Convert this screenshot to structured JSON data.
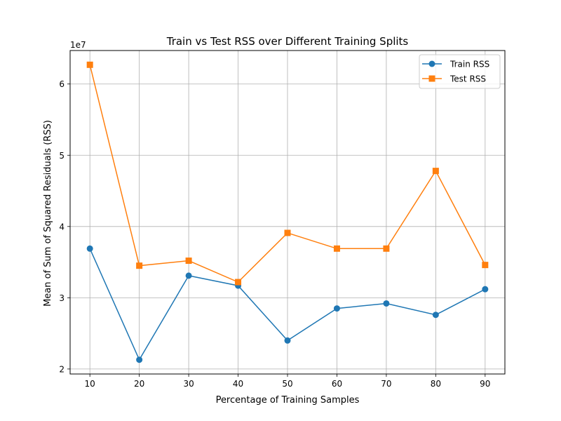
{
  "chart_data": {
    "type": "line",
    "title": "Train vs Test RSS over Different Training Splits",
    "xlabel": "Percentage of Training Samples",
    "ylabel": "Mean of Sum of Squared Residuals (RSS)",
    "y_offset_label": "1e7",
    "x": [
      10,
      20,
      30,
      40,
      50,
      60,
      70,
      80,
      90
    ],
    "xlim": [
      6.0,
      94.0
    ],
    "ylim": [
      1.93,
      6.47
    ],
    "xticks": [
      10,
      20,
      30,
      40,
      50,
      60,
      70,
      80,
      90
    ],
    "xtick_labels": [
      "10",
      "20",
      "30",
      "40",
      "50",
      "60",
      "70",
      "80",
      "90"
    ],
    "yticks": [
      2,
      3,
      4,
      5,
      6
    ],
    "ytick_labels": [
      "2",
      "3",
      "4",
      "5",
      "6"
    ],
    "grid": true,
    "legend_position": "top-right",
    "series": [
      {
        "name": "Train RSS",
        "marker": "circle",
        "color": "#1f77b4",
        "values": [
          3.69,
          2.13,
          3.31,
          3.17,
          2.4,
          2.85,
          2.92,
          2.76,
          3.12
        ]
      },
      {
        "name": "Test RSS",
        "marker": "square",
        "color": "#ff7f0e",
        "values": [
          6.27,
          3.45,
          3.52,
          3.22,
          3.91,
          3.69,
          3.69,
          4.78,
          3.46
        ]
      }
    ]
  }
}
